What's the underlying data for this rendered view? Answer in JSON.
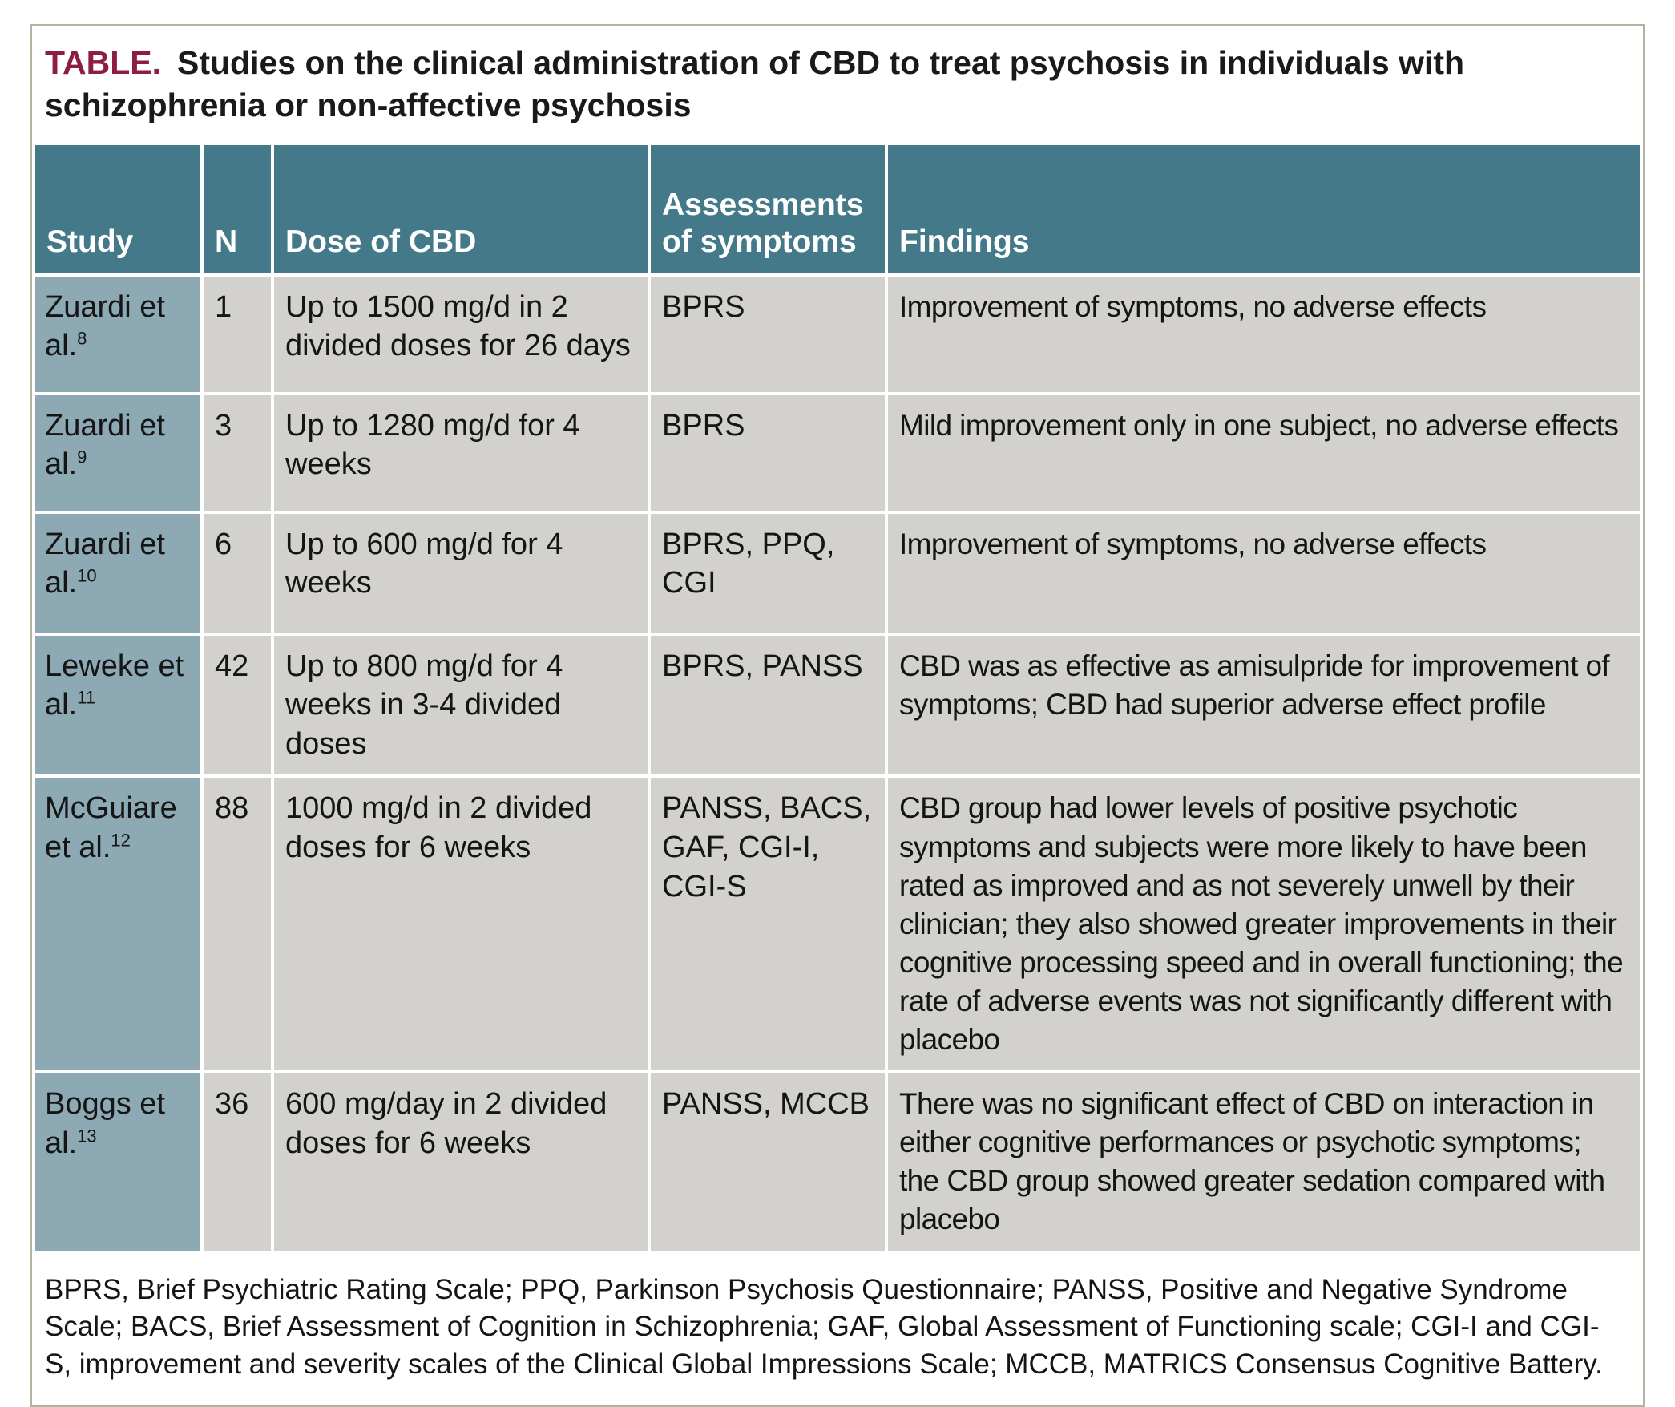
{
  "title": {
    "label": "TABLE.",
    "text": "Studies on the clinical administration of CBD to treat psychosis in individuals with schizophrenia or non-affective psychosis"
  },
  "table": {
    "columns": [
      "Study",
      "N",
      "Dose of CBD",
      "Assessments of symptoms",
      "Findings"
    ],
    "rows": [
      {
        "study": "Zuardi et al.",
        "ref": "8",
        "n": "1",
        "dose": "Up to 1500 mg/d in 2 divided doses for 26 days",
        "assessments": "BPRS",
        "findings": "Improvement of symptoms, no adverse effects"
      },
      {
        "study": "Zuardi et al.",
        "ref": "9",
        "n": "3",
        "dose": "Up to 1280 mg/d for 4 weeks",
        "assessments": "BPRS",
        "findings": "Mild improvement only in one subject, no adverse effects"
      },
      {
        "study": "Zuardi et al.",
        "ref": "10",
        "n": "6",
        "dose": "Up to 600 mg/d for 4 weeks",
        "assessments": "BPRS, PPQ, CGI",
        "findings": "Improvement of symptoms, no adverse effects"
      },
      {
        "study": "Leweke et al.",
        "ref": "11",
        "n": "42",
        "dose": "Up to 800 mg/d for 4 weeks in 3-4 divided doses",
        "assessments": "BPRS, PANSS",
        "findings": "CBD was as effective as amisulpride for improvement of symptoms; CBD had superior adverse effect profile"
      },
      {
        "study": "McGuiare et al.",
        "ref": "12",
        "n": "88",
        "dose": "1000 mg/d in 2 divided doses for 6 weeks",
        "assessments": "PANSS, BACS, GAF, CGI-I, CGI-S",
        "findings": "CBD group had lower levels of positive psychotic symptoms and subjects were more likely to have been rated as improved and as not severely unwell by their clinician; they also showed greater improvements in their cognitive processing speed and in overall functioning; the rate of adverse events was not significantly different with placebo"
      },
      {
        "study": "Boggs et al.",
        "ref": "13",
        "n": "36",
        "dose": "600 mg/day in 2 divided doses for 6 weeks",
        "assessments": "PANSS, MCCB",
        "findings": "There was no significant effect of CBD on interaction in either cognitive performances or psychotic symptoms; the CBD group showed greater sedation compared with placebo"
      }
    ]
  },
  "footnote": "BPRS, Brief Psychiatric Rating Scale; PPQ, Parkinson Psychosis Questionnaire; PANSS, Positive and Negative Syndrome Scale; BACS, Brief Assessment of Cognition in Schizophrenia; GAF, Global Assessment of Functioning scale; CGI-I and CGI-S, improvement and severity scales of the Clinical Global Impressions Scale; MCCB, MATRICS Consensus Cognitive Battery.",
  "colors": {
    "header_bg": "#44798a",
    "study_col_bg": "#8ca9b4",
    "cell_bg": "#d2d1cd",
    "title_label_color": "#8e1d45",
    "border": "#b3b3a4"
  }
}
